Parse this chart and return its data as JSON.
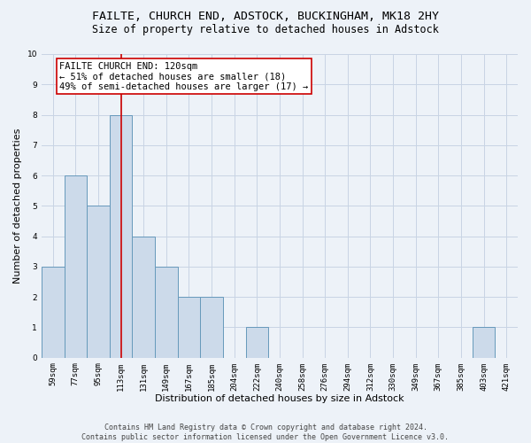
{
  "title1": "FAILTE, CHURCH END, ADSTOCK, BUCKINGHAM, MK18 2HY",
  "title2": "Size of property relative to detached houses in Adstock",
  "xlabel": "Distribution of detached houses by size in Adstock",
  "ylabel": "Number of detached properties",
  "categories": [
    "59sqm",
    "77sqm",
    "95sqm",
    "113sqm",
    "131sqm",
    "149sqm",
    "167sqm",
    "185sqm",
    "204sqm",
    "222sqm",
    "240sqm",
    "258sqm",
    "276sqm",
    "294sqm",
    "312sqm",
    "330sqm",
    "349sqm",
    "367sqm",
    "385sqm",
    "403sqm",
    "421sqm"
  ],
  "values": [
    3,
    6,
    5,
    8,
    4,
    3,
    2,
    2,
    0,
    1,
    0,
    0,
    0,
    0,
    0,
    0,
    0,
    0,
    0,
    1,
    0
  ],
  "bar_color": "#ccdaea",
  "bar_edge_color": "#6699bb",
  "bar_linewidth": 0.7,
  "grid_color": "#c8d4e4",
  "background_color": "#edf2f8",
  "vline_x": 3,
  "vline_color": "#cc0000",
  "vline_linewidth": 1.2,
  "annotation_text": "FAILTE CHURCH END: 120sqm\n← 51% of detached houses are smaller (18)\n49% of semi-detached houses are larger (17) →",
  "annotation_box_color": "white",
  "annotation_box_edge_color": "#cc0000",
  "ylim": [
    0,
    10
  ],
  "yticks": [
    0,
    1,
    2,
    3,
    4,
    5,
    6,
    7,
    8,
    9,
    10
  ],
  "footnote": "Contains HM Land Registry data © Crown copyright and database right 2024.\nContains public sector information licensed under the Open Government Licence v3.0.",
  "title1_fontsize": 9.5,
  "title2_fontsize": 8.5,
  "annotation_fontsize": 7.5,
  "ylabel_fontsize": 8,
  "xlabel_fontsize": 8,
  "tick_fontsize": 6.5,
  "footnote_fontsize": 6.0
}
